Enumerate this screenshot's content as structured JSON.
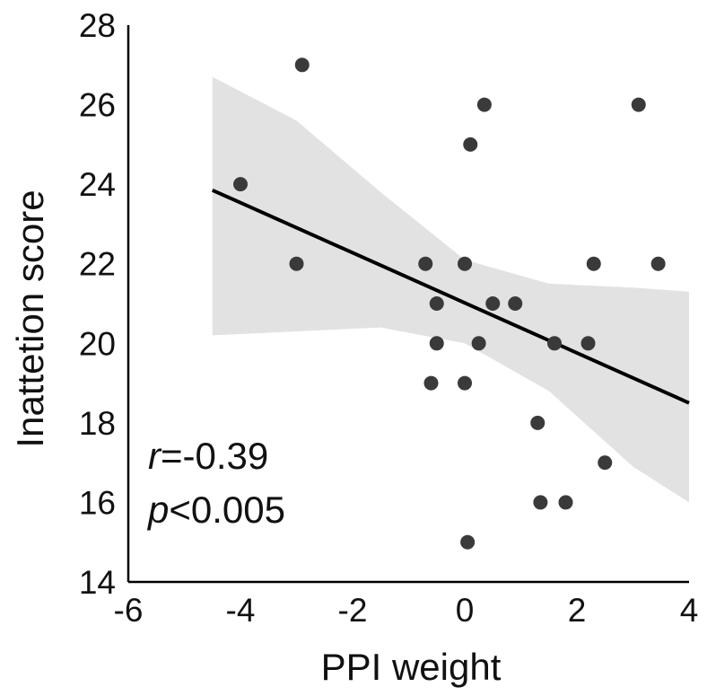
{
  "chart_data": {
    "type": "scatter",
    "xlabel": "PPI weight",
    "ylabel": "Inattetion score",
    "xlim": [
      -6,
      4
    ],
    "ylim": [
      14,
      28
    ],
    "xticks": [
      "-6",
      "-4",
      "-2",
      "0",
      "2",
      "4"
    ],
    "yticks": [
      "14",
      "16",
      "18",
      "20",
      "22",
      "24",
      "26",
      "28"
    ],
    "grid": false,
    "points": [
      {
        "x": -4.0,
        "y": 24
      },
      {
        "x": -2.9,
        "y": 27
      },
      {
        "x": -3.0,
        "y": 22
      },
      {
        "x": -0.7,
        "y": 22
      },
      {
        "x": 0.0,
        "y": 22
      },
      {
        "x": -0.5,
        "y": 21
      },
      {
        "x": 0.5,
        "y": 21
      },
      {
        "x": 0.9,
        "y": 21
      },
      {
        "x": -0.5,
        "y": 20
      },
      {
        "x": 0.25,
        "y": 20
      },
      {
        "x": 1.6,
        "y": 20
      },
      {
        "x": 2.2,
        "y": 20
      },
      {
        "x": -0.6,
        "y": 19
      },
      {
        "x": 0.0,
        "y": 19
      },
      {
        "x": 1.3,
        "y": 18
      },
      {
        "x": 2.5,
        "y": 17
      },
      {
        "x": 1.35,
        "y": 16
      },
      {
        "x": 1.8,
        "y": 16
      },
      {
        "x": 0.05,
        "y": 15
      },
      {
        "x": 0.1,
        "y": 25
      },
      {
        "x": 0.35,
        "y": 26
      },
      {
        "x": 3.1,
        "y": 26
      },
      {
        "x": 2.3,
        "y": 22
      },
      {
        "x": 3.45,
        "y": 22
      }
    ],
    "regression_line": {
      "x": [
        -4.5,
        4.0
      ],
      "y": [
        23.85,
        18.5
      ]
    },
    "confidence_band": {
      "x": [
        -4.5,
        -3.0,
        -1.5,
        0.0,
        1.5,
        3.0,
        4.0
      ],
      "upper": [
        26.7,
        25.6,
        23.8,
        22.1,
        21.5,
        21.4,
        21.3
      ],
      "lower": [
        20.2,
        20.3,
        20.4,
        20.0,
        18.8,
        16.9,
        16.0
      ]
    },
    "annotations": {
      "r_symbol": "r",
      "r_value": "=-0.39",
      "p_symbol": "p",
      "p_value": "<0.005"
    },
    "colors": {
      "points": "#3a3a3a",
      "line": "#000000",
      "band": "#e2e2e2",
      "axis": "#000000"
    }
  }
}
